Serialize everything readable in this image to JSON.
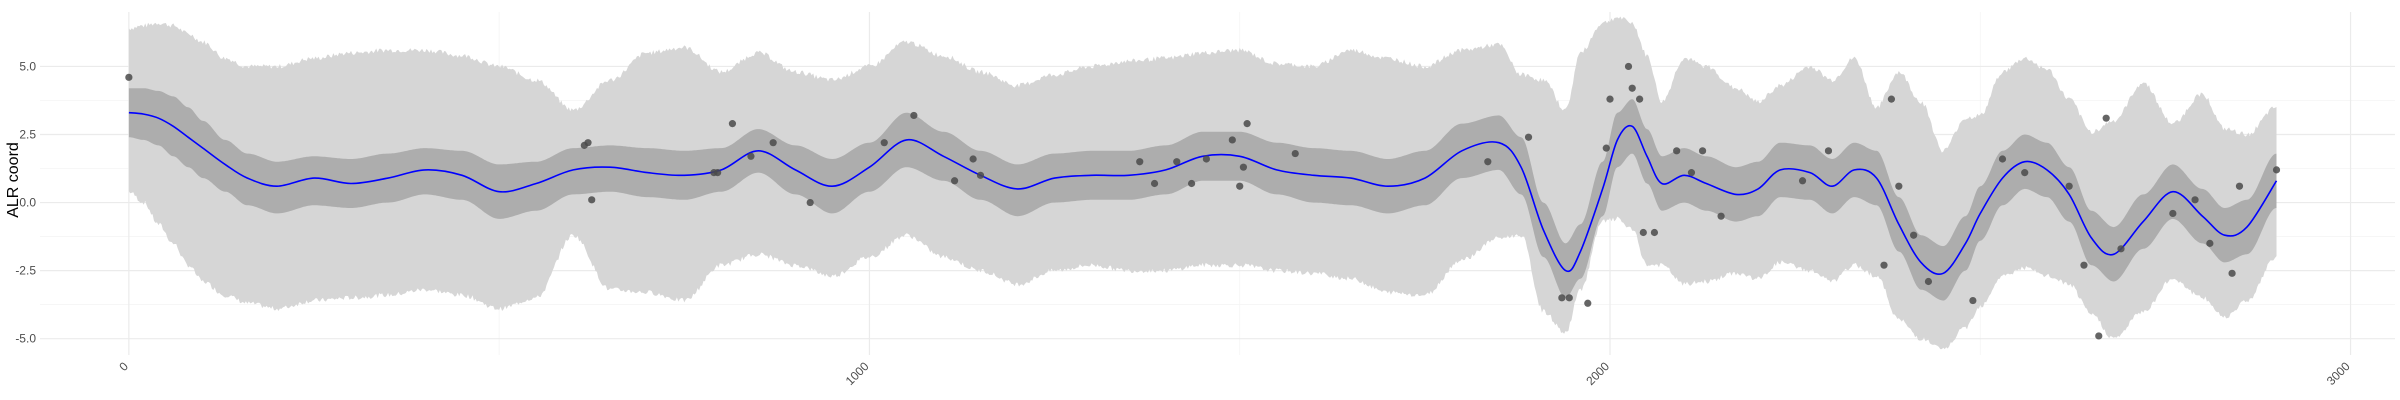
{
  "chart_data": {
    "type": "line",
    "title": "",
    "xlabel": "",
    "ylabel": "ALR coord",
    "xlim": [
      -120,
      3060
    ],
    "ylim": [
      -5.6,
      7.0
    ],
    "x_ticks": [
      0,
      1000,
      2000,
      3000
    ],
    "y_ticks": [
      -5.0,
      -2.5,
      0.0,
      2.5,
      5.0
    ],
    "y_tick_labels": [
      "-5.0",
      "-2.5",
      "0.0",
      "2.5",
      "5.0"
    ],
    "grid": true,
    "colors": {
      "line": "#0000ff",
      "inner_band": "#adadad",
      "outer_band": "#d6d6d6",
      "points": "#4a4a4a"
    },
    "series": [
      {
        "type": "line",
        "x": [
          0,
          20,
          40,
          60,
          80,
          100,
          130,
          160,
          200,
          250,
          300,
          350,
          400,
          450,
          500,
          550,
          600,
          650,
          700,
          750,
          800,
          850,
          900,
          950,
          1000,
          1050,
          1100,
          1150,
          1200,
          1250,
          1300,
          1350,
          1400,
          1450,
          1500,
          1550,
          1600,
          1650,
          1700,
          1750,
          1800,
          1850,
          1880,
          1910,
          1940,
          1960,
          1990,
          2010,
          2030,
          2050,
          2070,
          2100,
          2130,
          2170,
          2200,
          2230,
          2270,
          2300,
          2330,
          2360,
          2390,
          2420,
          2450,
          2480,
          2500,
          2530,
          2560,
          2590,
          2620,
          2650,
          2680,
          2720,
          2760,
          2800,
          2830,
          2860,
          2900
        ],
        "mean": [
          3.3,
          3.25,
          3.1,
          2.8,
          2.4,
          2.0,
          1.4,
          0.9,
          0.6,
          0.9,
          0.7,
          0.9,
          1.2,
          1.0,
          0.4,
          0.7,
          1.2,
          1.3,
          1.1,
          1.0,
          1.2,
          1.9,
          1.2,
          0.6,
          1.3,
          2.3,
          1.7,
          1.0,
          0.5,
          0.9,
          1.0,
          1.0,
          1.2,
          1.7,
          1.7,
          1.2,
          1.0,
          0.9,
          0.6,
          0.9,
          1.9,
          2.2,
          1.3,
          -1.0,
          -2.5,
          -1.8,
          0.5,
          2.3,
          2.8,
          1.7,
          0.7,
          1.0,
          0.7,
          0.3,
          0.5,
          1.2,
          1.1,
          0.6,
          1.2,
          0.9,
          -0.8,
          -2.2,
          -2.6,
          -1.5,
          -0.4,
          0.9,
          1.5,
          1.2,
          0.3,
          -1.3,
          -1.9,
          -0.7,
          0.4,
          -0.5,
          -1.2,
          -0.9,
          0.8
        ],
        "upper": [
          6.4,
          6.5,
          6.6,
          6.5,
          6.2,
          5.9,
          5.3,
          5.0,
          5.0,
          5.3,
          5.5,
          5.6,
          5.6,
          5.4,
          5.0,
          4.5,
          3.4,
          4.5,
          5.5,
          5.7,
          4.8,
          5.5,
          4.8,
          4.5,
          5.0,
          5.9,
          5.4,
          4.8,
          4.3,
          4.7,
          5.0,
          5.2,
          5.3,
          5.5,
          5.6,
          5.1,
          5.0,
          5.6,
          5.3,
          5.0,
          5.6,
          5.8,
          4.7,
          4.5,
          3.4,
          5.5,
          6.6,
          6.8,
          6.6,
          5.4,
          3.7,
          5.3,
          5.0,
          4.2,
          3.7,
          4.3,
          5.0,
          4.5,
          5.3,
          3.5,
          4.8,
          3.7,
          1.9,
          3.1,
          3.2,
          4.8,
          5.3,
          4.9,
          3.8,
          2.6,
          3.0,
          4.4,
          2.9,
          4.0,
          2.7,
          2.5,
          3.5
        ],
        "lower": [
          0.4,
          0.0,
          -0.8,
          -1.5,
          -2.3,
          -2.9,
          -3.4,
          -3.7,
          -3.9,
          -3.6,
          -3.5,
          -3.4,
          -3.2,
          -3.4,
          -3.9,
          -3.5,
          -1.2,
          -3.2,
          -3.3,
          -3.6,
          -2.3,
          -1.9,
          -2.3,
          -2.7,
          -2.0,
          -1.2,
          -2.0,
          -2.5,
          -3.0,
          -2.5,
          -2.3,
          -2.5,
          -2.5,
          -2.3,
          -2.3,
          -2.5,
          -2.6,
          -2.8,
          -3.3,
          -3.4,
          -2.1,
          -1.3,
          -1.2,
          -4.0,
          -4.8,
          -3.2,
          -0.7,
          -0.6,
          -1.0,
          -2.3,
          -2.3,
          -3.0,
          -2.9,
          -2.6,
          -2.8,
          -2.2,
          -2.5,
          -2.9,
          -2.3,
          -2.7,
          -4.3,
          -5.0,
          -5.4,
          -4.6,
          -3.8,
          -2.7,
          -2.4,
          -2.7,
          -3.0,
          -4.1,
          -5.0,
          -4.0,
          -2.8,
          -3.5,
          -4.2,
          -3.6,
          -2.0
        ],
        "inner_upper": [
          4.2,
          4.2,
          4.1,
          3.9,
          3.5,
          3.0,
          2.3,
          1.8,
          1.5,
          1.7,
          1.6,
          1.8,
          2.0,
          1.9,
          1.4,
          1.5,
          2.0,
          2.1,
          2.0,
          1.9,
          2.0,
          2.7,
          2.1,
          1.6,
          2.2,
          3.3,
          2.6,
          1.9,
          1.4,
          1.8,
          1.9,
          1.9,
          2.1,
          2.6,
          2.6,
          2.2,
          2.0,
          1.9,
          1.6,
          1.9,
          2.9,
          3.2,
          2.4,
          0.0,
          -1.5,
          -0.8,
          1.5,
          3.3,
          3.8,
          2.7,
          1.7,
          2.0,
          1.7,
          1.3,
          1.5,
          2.2,
          2.1,
          1.6,
          2.2,
          1.9,
          0.2,
          -1.2,
          -1.6,
          -0.5,
          0.6,
          1.9,
          2.5,
          2.2,
          1.3,
          -0.3,
          -0.9,
          0.3,
          1.4,
          0.5,
          -0.2,
          0.1,
          1.8
        ],
        "inner_lower": [
          2.4,
          2.3,
          2.1,
          1.7,
          1.3,
          0.9,
          0.4,
          -0.1,
          -0.4,
          -0.1,
          -0.2,
          0.0,
          0.3,
          0.1,
          -0.6,
          -0.3,
          0.3,
          0.4,
          0.2,
          0.1,
          0.4,
          1.1,
          0.3,
          -0.4,
          0.4,
          1.3,
          0.8,
          0.1,
          -0.5,
          0.0,
          0.1,
          0.1,
          0.3,
          0.8,
          0.8,
          0.3,
          0.0,
          -0.1,
          -0.4,
          -0.1,
          0.9,
          1.2,
          0.3,
          -2.0,
          -3.5,
          -2.8,
          -0.5,
          1.3,
          1.8,
          0.7,
          -0.3,
          0.0,
          -0.3,
          -0.7,
          -0.5,
          0.2,
          0.1,
          -0.4,
          0.2,
          -0.1,
          -1.8,
          -3.2,
          -3.6,
          -2.5,
          -1.4,
          -0.1,
          0.5,
          0.2,
          -0.7,
          -2.3,
          -2.9,
          -1.7,
          -0.6,
          -1.5,
          -2.2,
          -1.9,
          -0.2
        ]
      },
      {
        "type": "scatter",
        "x": [
          0,
          620,
          615,
          625,
          790,
          795,
          815,
          840,
          870,
          920,
          1020,
          1060,
          1115,
          1140,
          1150,
          1365,
          1385,
          1415,
          1435,
          1455,
          1490,
          1500,
          1505,
          1510,
          1575,
          1835,
          1890,
          1935,
          1945,
          1970,
          1995,
          2000,
          2025,
          2030,
          2040,
          2045,
          2060,
          2090,
          2110,
          2125,
          2150,
          2260,
          2295,
          2370,
          2380,
          2390,
          2410,
          2430,
          2490,
          2530,
          2560,
          2620,
          2640,
          2660,
          2670,
          2690,
          2760,
          2790,
          2810,
          2840,
          2850,
          2900
        ],
        "y": [
          4.6,
          2.2,
          2.1,
          0.1,
          1.1,
          1.1,
          2.9,
          1.7,
          2.2,
          0.0,
          2.2,
          3.2,
          0.8,
          1.6,
          1.0,
          1.5,
          0.7,
          1.5,
          0.7,
          1.6,
          2.3,
          0.6,
          1.3,
          2.9,
          1.8,
          1.5,
          2.4,
          -3.5,
          -3.5,
          -3.7,
          2.0,
          3.8,
          5.0,
          4.2,
          3.8,
          -1.1,
          -1.1,
          1.9,
          1.1,
          1.9,
          -0.5,
          0.8,
          1.9,
          -2.3,
          3.8,
          0.6,
          -1.2,
          -2.9,
          -3.6,
          1.6,
          1.1,
          0.6,
          -2.3,
          -4.9,
          3.1,
          -1.7,
          -0.4,
          0.1,
          -1.5,
          -2.6,
          0.6,
          1.2
        ]
      }
    ]
  }
}
